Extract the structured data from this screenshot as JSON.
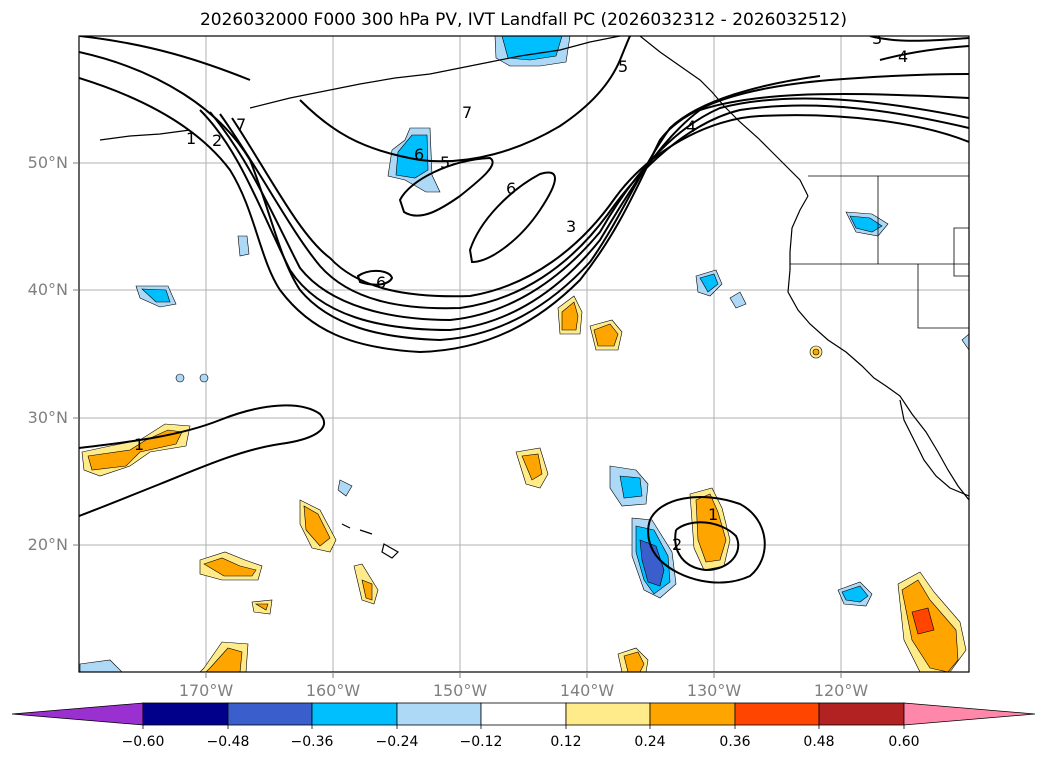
{
  "title": "2026032000 F000 300 hPa PV, IVT Landfall PC (2026032312 - 2026032512)",
  "map": {
    "lat_labels": [
      "50°N",
      "40°N",
      "30°N",
      "20°N"
    ],
    "lon_labels": [
      "170°W",
      "160°W",
      "150°W",
      "140°W",
      "130°W",
      "120°W"
    ],
    "gridlines": true,
    "contour_labels": [
      "1",
      "2",
      "7",
      "5",
      "4",
      "7",
      "6",
      "5",
      "6",
      "3",
      "6",
      "1",
      "1",
      "2",
      "3",
      "4"
    ]
  },
  "colorbar": {
    "tick_labels": [
      "−0.60",
      "−0.48",
      "−0.36",
      "−0.24",
      "−0.12",
      "0.12",
      "0.24",
      "0.36",
      "0.48",
      "0.60"
    ],
    "colors": [
      "#9b30d0",
      "#00008b",
      "#3a5fcd",
      "#00bfff",
      "#add8f6",
      "#ffffff",
      "#ffeb8a",
      "#ffa500",
      "#ff4500",
      "#b22222",
      "#ff88aa"
    ],
    "extend": "both"
  }
}
